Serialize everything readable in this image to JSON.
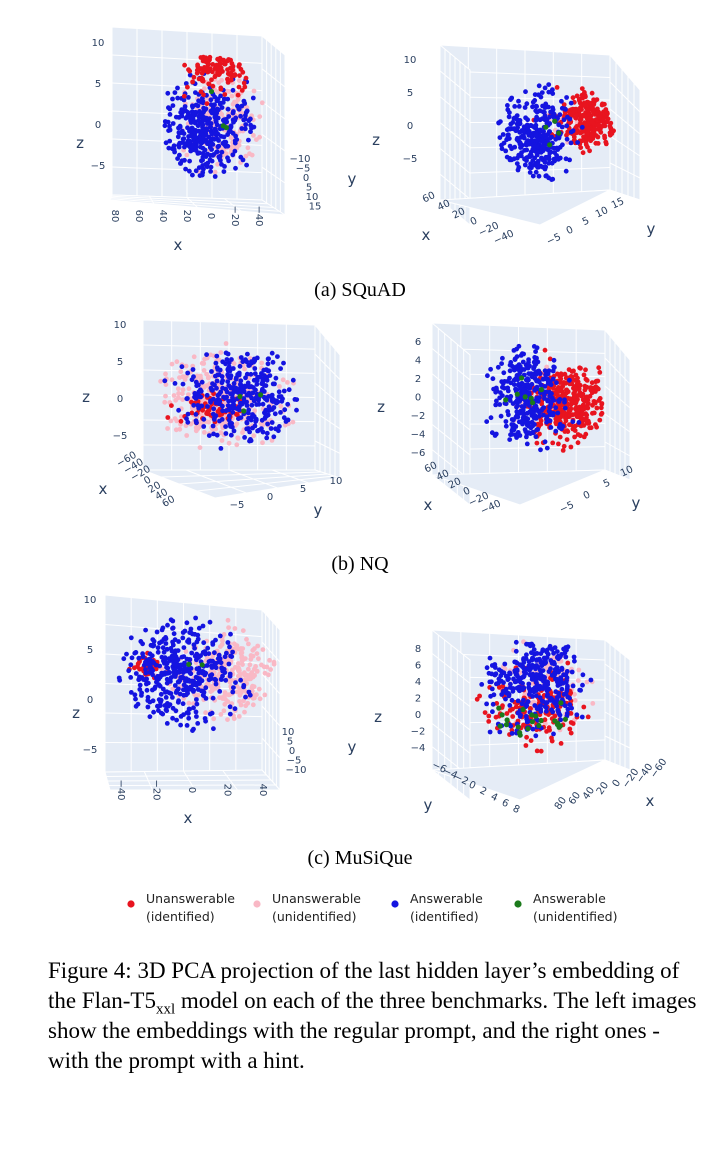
{
  "figure": {
    "caption": {
      "prefix": "Figure 4: 3D PCA projection of the last hidden layer’s embedding of the Flan-T5",
      "subscript": "xxl",
      "suffix": " model on each of the three benchmarks. The left images show the embeddings with the regular prompt, and the right ones - with the prompt with a hint."
    },
    "subcaptions": [
      "(a) SQuAD",
      "(b) NQ",
      "(c) MuSiQue"
    ]
  },
  "legend": {
    "entries": [
      {
        "line1": "Unanswerable",
        "line2": "(identified)",
        "color": "#e8141f"
      },
      {
        "line1": "Unanswerable",
        "line2": "(unidentified)",
        "color": "#f9b8c5"
      },
      {
        "line1": "Answerable",
        "line2": "(identified)",
        "color": "#1414e0"
      },
      {
        "line1": "Answerable",
        "line2": "(unidentified)",
        "color": "#1b7a1b"
      }
    ]
  },
  "chart_data": [
    {
      "type": "scatter",
      "panel": "(a) SQuAD - regular prompt",
      "axis_titles": {
        "x": "x",
        "y": "y",
        "z": "z"
      },
      "x_ticks": [
        "80",
        "60",
        "40",
        "20",
        "0",
        "−20",
        "−40"
      ],
      "y_ticks": [
        "−10",
        "−5",
        "0",
        "5",
        "10",
        "15"
      ],
      "z_ticks": [
        "10",
        "5",
        "0",
        "−5"
      ],
      "series": [
        {
          "name": "Unanswerable (identified)",
          "color": "#e8141f",
          "approx_points": 260,
          "centroid": {
            "x": 0,
            "y": 0,
            "z": 7
          }
        },
        {
          "name": "Unanswerable (unidentified)",
          "color": "#f9b8c5",
          "approx_points": 320,
          "centroid": {
            "x": 15,
            "y": 0,
            "z": 2
          }
        },
        {
          "name": "Answerable (identified)",
          "color": "#1414e0",
          "approx_points": 700,
          "centroid": {
            "x": -5,
            "y": 0,
            "z": 1
          }
        },
        {
          "name": "Answerable (unidentified)",
          "color": "#1b7a1b",
          "approx_points": 5,
          "centroid": {
            "x": 0,
            "y": 0,
            "z": 0
          }
        }
      ]
    },
    {
      "type": "scatter",
      "panel": "(a) SQuAD - prompt with hint",
      "axis_titles": {
        "x": "x",
        "y": "y",
        "z": "z"
      },
      "x_ticks": [
        "60",
        "40",
        "20",
        "0",
        "−20",
        "−40"
      ],
      "y_ticks": [
        "−5",
        "0",
        "5",
        "10",
        "15"
      ],
      "z_ticks": [
        "10",
        "5",
        "0",
        "−5"
      ],
      "series": [
        {
          "name": "Unanswerable (identified)",
          "color": "#e8141f",
          "approx_points": 520,
          "centroid": {
            "x": -20,
            "y": 5,
            "z": 2
          }
        },
        {
          "name": "Unanswerable (unidentified)",
          "color": "#f9b8c5",
          "approx_points": 40,
          "centroid": {
            "x": 0,
            "y": 5,
            "z": 2
          }
        },
        {
          "name": "Answerable (identified)",
          "color": "#1414e0",
          "approx_points": 650,
          "centroid": {
            "x": 20,
            "y": 5,
            "z": 0
          }
        },
        {
          "name": "Answerable (unidentified)",
          "color": "#1b7a1b",
          "approx_points": 8,
          "centroid": {
            "x": 0,
            "y": 5,
            "z": 0
          }
        }
      ]
    },
    {
      "type": "scatter",
      "panel": "(b) NQ - regular prompt",
      "axis_titles": {
        "x": "x",
        "y": "y",
        "z": "z"
      },
      "x_ticks": [
        "−60",
        "−40",
        "−20",
        "0",
        "20",
        "40",
        "60"
      ],
      "y_ticks": [
        "−5",
        "0",
        "5",
        "10"
      ],
      "z_ticks": [
        "10",
        "5",
        "0",
        "−5"
      ],
      "series": [
        {
          "name": "Unanswerable (identified)",
          "color": "#e8141f",
          "approx_points": 120,
          "centroid": {
            "x": -20,
            "y": 0,
            "z": 0
          }
        },
        {
          "name": "Unanswerable (unidentified)",
          "color": "#f9b8c5",
          "approx_points": 650,
          "centroid": {
            "x": -10,
            "y": 0,
            "z": 0
          }
        },
        {
          "name": "Answerable (identified)",
          "color": "#1414e0",
          "approx_points": 650,
          "centroid": {
            "x": 10,
            "y": 0,
            "z": 0
          }
        },
        {
          "name": "Answerable (unidentified)",
          "color": "#1b7a1b",
          "approx_points": 5,
          "centroid": {
            "x": 0,
            "y": 0,
            "z": 0
          }
        }
      ]
    },
    {
      "type": "scatter",
      "panel": "(b) NQ - prompt with hint",
      "axis_titles": {
        "x": "x",
        "y": "y",
        "z": "z"
      },
      "x_ticks": [
        "60",
        "40",
        "20",
        "0",
        "−20",
        "−40"
      ],
      "y_ticks": [
        "−5",
        "0",
        "5",
        "10"
      ],
      "z_ticks": [
        "6",
        "4",
        "2",
        "0",
        "−2",
        "−4",
        "−6"
      ],
      "series": [
        {
          "name": "Unanswerable (identified)",
          "color": "#e8141f",
          "approx_points": 620,
          "centroid": {
            "x": -20,
            "y": 3,
            "z": 0
          }
        },
        {
          "name": "Unanswerable (unidentified)",
          "color": "#f9b8c5",
          "approx_points": 60,
          "centroid": {
            "x": 0,
            "y": 3,
            "z": 0
          }
        },
        {
          "name": "Answerable (identified)",
          "color": "#1414e0",
          "approx_points": 620,
          "centroid": {
            "x": 20,
            "y": 3,
            "z": 1
          }
        },
        {
          "name": "Answerable (unidentified)",
          "color": "#1b7a1b",
          "approx_points": 12,
          "centroid": {
            "x": 10,
            "y": 3,
            "z": 1
          }
        }
      ]
    },
    {
      "type": "scatter",
      "panel": "(c) MuSiQue - regular prompt",
      "axis_titles": {
        "x": "x",
        "y": "y",
        "z": "z"
      },
      "x_ticks": [
        "−40",
        "−20",
        "0",
        "20",
        "40"
      ],
      "y_ticks": [
        "10",
        "5",
        "0",
        "−5",
        "−10"
      ],
      "z_ticks": [
        "10",
        "5",
        "0",
        "−5"
      ],
      "series": [
        {
          "name": "Unanswerable (identified)",
          "color": "#e8141f",
          "approx_points": 60,
          "centroid": {
            "x": -20,
            "y": 0,
            "z": 2
          }
        },
        {
          "name": "Unanswerable (unidentified)",
          "color": "#f9b8c5",
          "approx_points": 520,
          "centroid": {
            "x": 15,
            "y": 0,
            "z": 0
          }
        },
        {
          "name": "Answerable (identified)",
          "color": "#1414e0",
          "approx_points": 750,
          "centroid": {
            "x": -10,
            "y": 0,
            "z": 1
          }
        },
        {
          "name": "Answerable (unidentified)",
          "color": "#1b7a1b",
          "approx_points": 4,
          "centroid": {
            "x": 0,
            "y": 0,
            "z": 0
          }
        }
      ]
    },
    {
      "type": "scatter",
      "panel": "(c) MuSiQue - prompt with hint",
      "axis_titles": {
        "x": "x",
        "y": "y",
        "z": "z"
      },
      "x_ticks": [
        "80",
        "60",
        "40",
        "20",
        "0",
        "−20",
        "−40",
        "−60"
      ],
      "y_ticks": [
        "−6",
        "−4",
        "−2",
        "0",
        "2",
        "4",
        "6",
        "8"
      ],
      "z_ticks": [
        "8",
        "6",
        "4",
        "2",
        "0",
        "−2",
        "−4"
      ],
      "series": [
        {
          "name": "Unanswerable (identified)",
          "color": "#e8141f",
          "approx_points": 320,
          "centroid": {
            "x": 0,
            "y": 0,
            "z": 0
          }
        },
        {
          "name": "Unanswerable (unidentified)",
          "color": "#f9b8c5",
          "approx_points": 220,
          "centroid": {
            "x": 5,
            "y": 0,
            "z": 1
          }
        },
        {
          "name": "Answerable (identified)",
          "color": "#1414e0",
          "approx_points": 650,
          "centroid": {
            "x": 0,
            "y": 0,
            "z": 2
          }
        },
        {
          "name": "Answerable (unidentified)",
          "color": "#1b7a1b",
          "approx_points": 40,
          "centroid": {
            "x": 5,
            "y": 0,
            "z": -1
          }
        }
      ]
    }
  ]
}
